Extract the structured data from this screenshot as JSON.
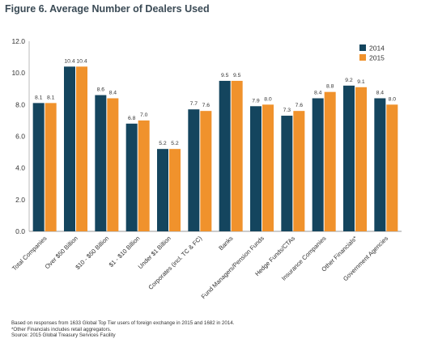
{
  "chart_data": {
    "type": "bar",
    "title": "Figure 6. Average Number of Dealers Used",
    "categories": [
      "Total Companies",
      "Over $50 Billion",
      "$10 - $50 Billion",
      "$1 - $10 Billion",
      "Under $1 Billion",
      "Corporates (incl. TC & FC)",
      "Banks",
      "Fund Managers/Pension Funds",
      "Hedge Funds/CTAs",
      "Insurance Companies",
      "Other Financials*",
      "Government Agencies"
    ],
    "series": [
      {
        "name": "2014",
        "color": "#14455e",
        "values": [
          8.1,
          10.4,
          8.6,
          6.8,
          5.2,
          7.7,
          9.5,
          7.9,
          7.3,
          8.4,
          9.2,
          8.4
        ]
      },
      {
        "name": "2015",
        "color": "#f0922c",
        "values": [
          8.1,
          10.4,
          8.4,
          7.0,
          5.2,
          7.6,
          9.5,
          8.0,
          7.6,
          8.8,
          9.1,
          8.0
        ]
      }
    ],
    "data_labels": [
      [
        "8.1",
        "10.4",
        "8.6",
        "6.8",
        "5.2",
        "7.7",
        "9.5",
        "7.9",
        "7.3",
        "8.4",
        "9.2",
        "8.4"
      ],
      [
        "8.1",
        "10.4",
        "8.4",
        "7.0",
        "5.2",
        "7.6",
        "9.5",
        "8.0",
        "7.6",
        "8.8",
        "9.1",
        "8.0"
      ]
    ],
    "ylim": [
      0,
      12
    ],
    "yticks": [
      "0.0",
      "2.0",
      "4.0",
      "6.0",
      "8.0",
      "10.0",
      "12.0"
    ],
    "xlabel": "",
    "ylabel": "",
    "legend_position": "top-right",
    "grid": false
  },
  "notes": [
    "Based on responses from 1633 Global Top Tier users of foreign exchange in 2015 and 1682 in 2014.",
    "*Other Financials includes retail aggregators.",
    "Source: 2015 Global Treasury Services Facility"
  ]
}
